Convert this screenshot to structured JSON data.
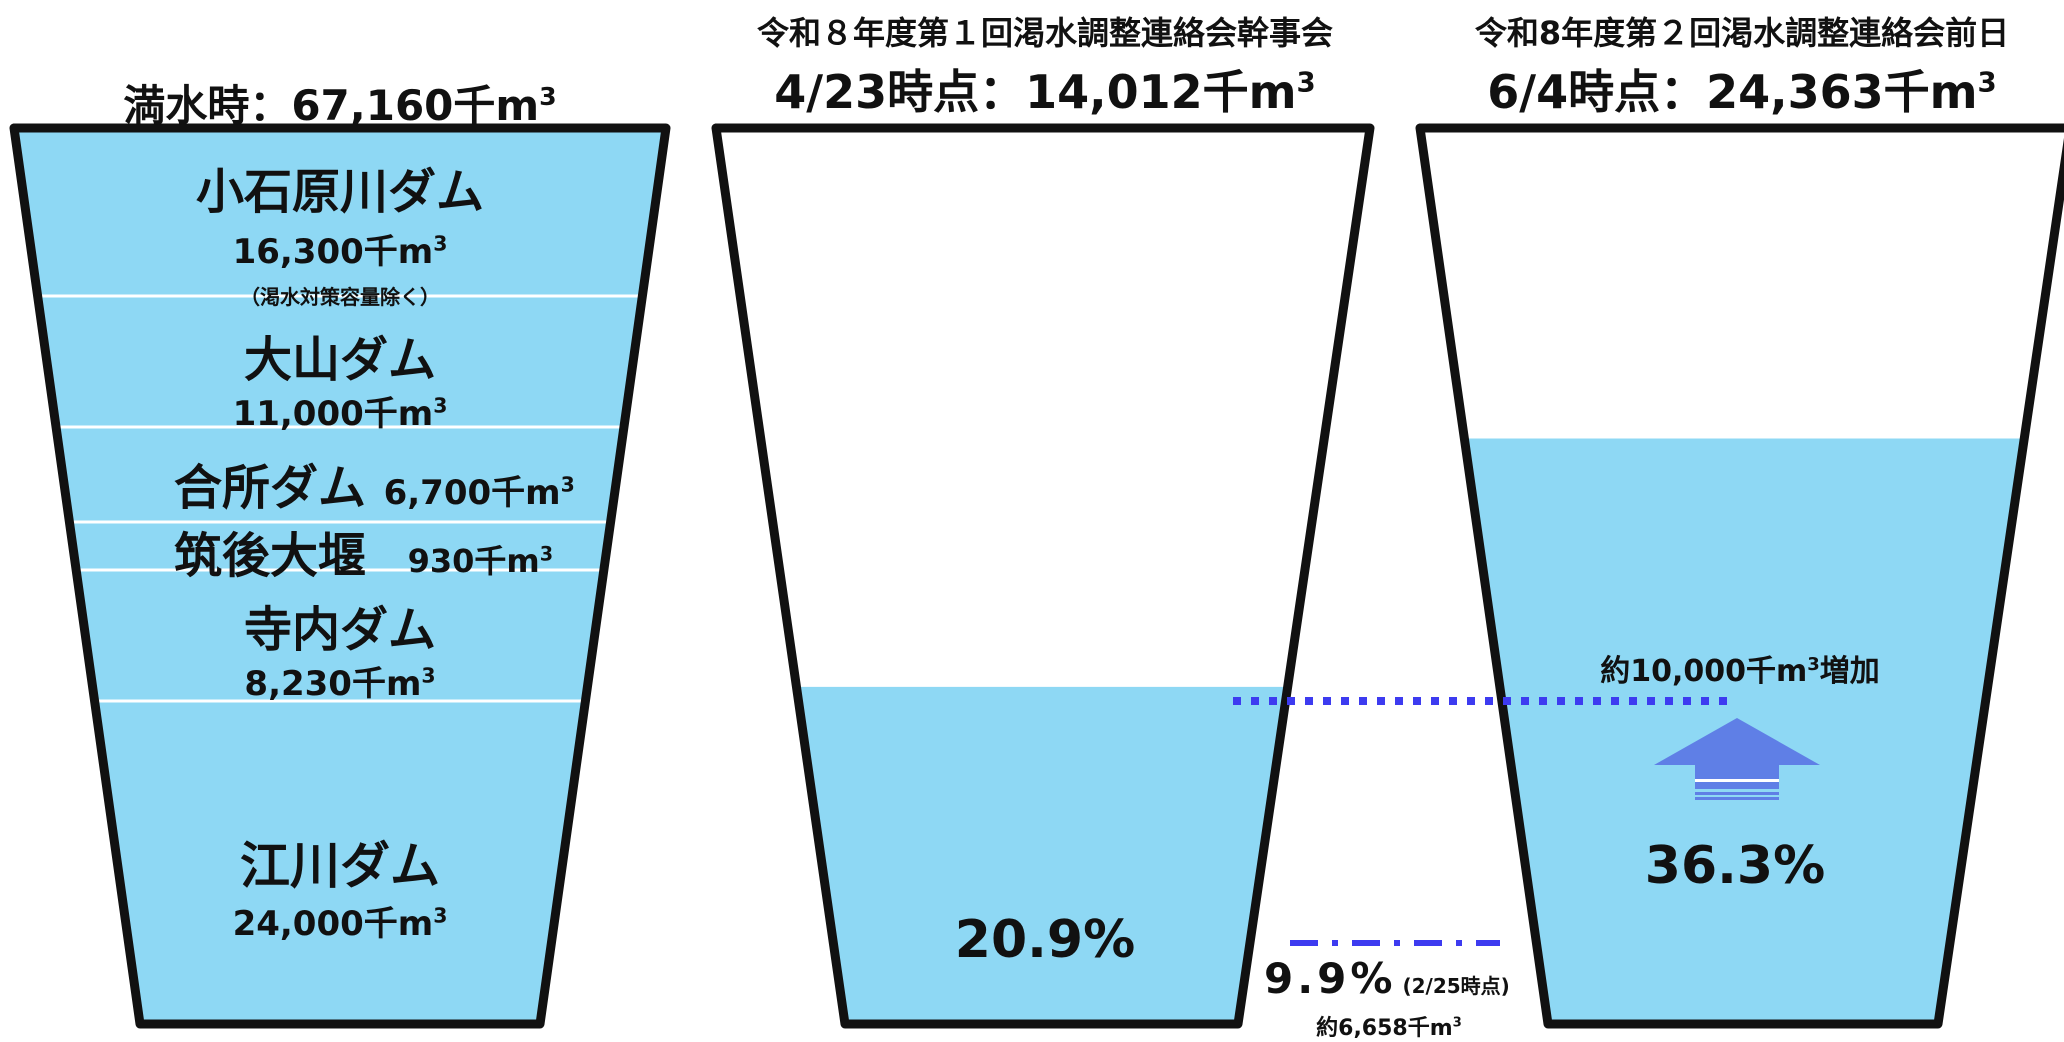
{
  "colors": {
    "water": "#8ed8f4",
    "outline": "#111111",
    "marker": "#3d3bf0",
    "arrow": "#5f7fe6",
    "divider": "#ffffff"
  },
  "panel1": {
    "title": "満水時：67,160千m",
    "title_sup": "3",
    "dams": [
      {
        "name": "小石原川ダム",
        "capacity": "16,300千m",
        "sup": "3",
        "note": "（渇水対策容量除く）"
      },
      {
        "name": "大山ダム",
        "capacity": "11,000千m",
        "sup": "3"
      },
      {
        "name": "合所ダム",
        "capacity": "6,700千m",
        "sup": "3"
      },
      {
        "name": "筑後大堰",
        "capacity": "930千m",
        "sup": "3"
      },
      {
        "name": "寺内ダム",
        "capacity": "8,230千m",
        "sup": "3"
      },
      {
        "name": "江川ダム",
        "capacity": "24,000千m",
        "sup": "3"
      }
    ]
  },
  "panel2": {
    "title_line1": "令和８年度第１回渇水調整連絡会幹事会",
    "title_line2": "4/23時点：14,012千m",
    "title_sup": "3",
    "percent_label": "20.9%",
    "fill_fraction": 0.209
  },
  "panel3": {
    "title_line1": "令和8年度第２回渇水調整連絡会前日",
    "title_line2": "6/4時点：24,363千m",
    "title_sup": "3",
    "percent_label": "36.3%",
    "fill_fraction": 0.363,
    "increase_label": "約10,000千m",
    "increase_sup": "3",
    "increase_suffix": "増加",
    "arrow_icon": "up-arrow-icon"
  },
  "reference": {
    "percent": "9.9%",
    "date_note": "(2/25時点)",
    "volume": "約6,658千m",
    "volume_sup": "3",
    "fill_fraction": 0.099
  }
}
